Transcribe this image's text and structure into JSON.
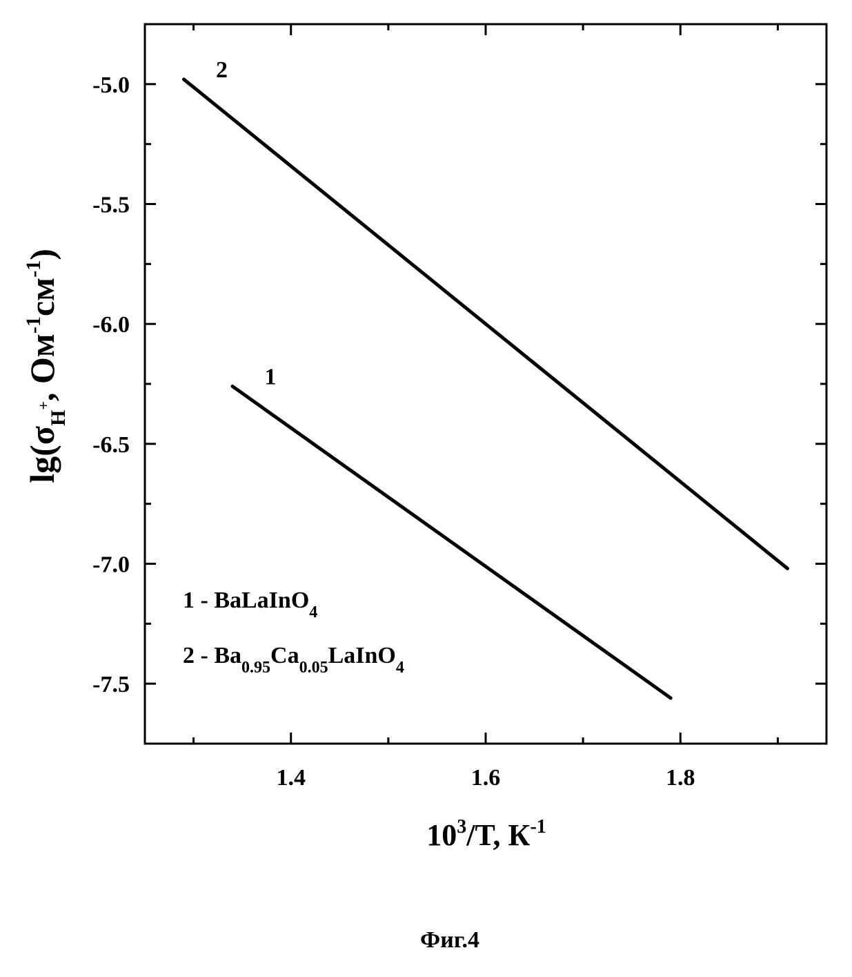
{
  "chart_data": {
    "type": "line",
    "x_label": {
      "base": "10",
      "sup": "3",
      "rest": "/T, К",
      "unit_sup": "-1"
    },
    "y_label": {
      "base": "lg(σ",
      "sub": "H",
      "sub_sup": "+",
      "rest": ", Ом",
      "sup1": "-1",
      "mid": "см",
      "sup2": "-1",
      "close": ")"
    },
    "x_range": [
      1.25,
      1.95
    ],
    "y_range": [
      -7.75,
      -4.75
    ],
    "x_ticks": [
      1.4,
      1.6,
      1.8
    ],
    "x_tick_labels": [
      "1.4",
      "1.6",
      "1.8"
    ],
    "y_ticks": [
      -5.0,
      -5.5,
      -6.0,
      -6.5,
      -7.0,
      -7.5
    ],
    "y_tick_labels": [
      "-5.0",
      "-5.5",
      "-6.0",
      "-6.5",
      "-7.0",
      "-7.5"
    ],
    "grid": false,
    "series": [
      {
        "id": "1",
        "label_on_chart": "1",
        "x": [
          1.34,
          1.79
        ],
        "y": [
          -6.26,
          -7.56
        ]
      },
      {
        "id": "2",
        "label_on_chart": "2",
        "x": [
          1.29,
          1.91
        ],
        "y": [
          -4.98,
          -7.02
        ]
      }
    ],
    "legend": {
      "placement": "bottom-left",
      "entries": [
        {
          "prefix": "1 - ",
          "parts": [
            {
              "t": "BaLaInO"
            },
            {
              "t": "4",
              "sub": true
            }
          ]
        },
        {
          "prefix": "2 - ",
          "parts": [
            {
              "t": "Ba"
            },
            {
              "t": "0.95",
              "sub": true
            },
            {
              "t": "Ca"
            },
            {
              "t": "0.05",
              "sub": true
            },
            {
              "t": "LaInO"
            },
            {
              "t": "4",
              "sub": true
            }
          ]
        }
      ]
    }
  },
  "caption": "Фиг.4",
  "colors": {
    "line": "#000000",
    "background": "#ffffff"
  }
}
